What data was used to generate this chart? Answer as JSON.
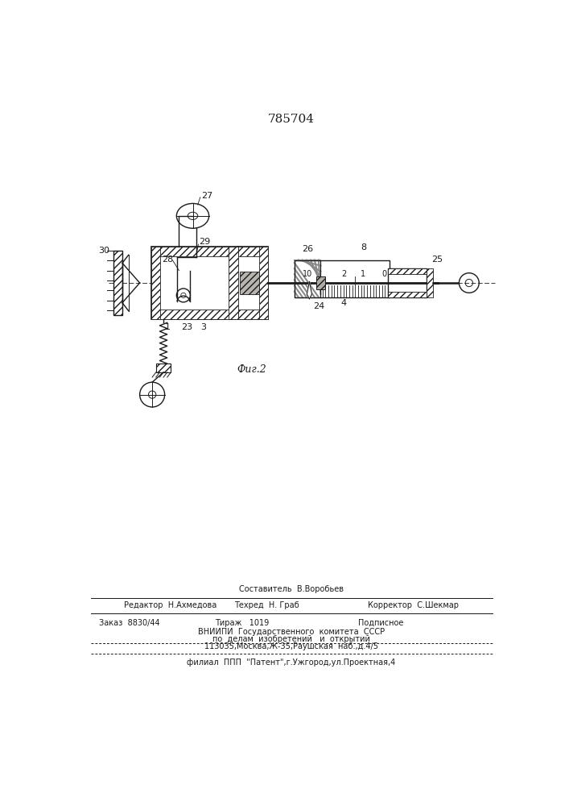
{
  "title": "785704",
  "fig_caption": "Фиг.2",
  "bg_color": "#ffffff",
  "line_color": "#1a1a1a",
  "bottom_line1": "Составитель  В.Воробьев",
  "bottom_line2a": "Редактор  Н.Ахмедова",
  "bottom_line2b": "Техред  Н. Граб",
  "bottom_line2c": "Корректор  С.Шекмар",
  "bottom_line3a": "Заказ  8830/44",
  "bottom_line3b": "Тираж   1019",
  "bottom_line3c": "Подписное",
  "bottom_line4": "ВНИИПИ  Государственного  комитета  СССР",
  "bottom_line5": "по  делам  изобретений   и  открытий",
  "bottom_line6": "113035,Москва,Ж-35,Раушская  наб.,д.4/5",
  "bottom_line7": "филиал  ППП  \"Патент\",г.Ужгород,ул.Проектная,4"
}
